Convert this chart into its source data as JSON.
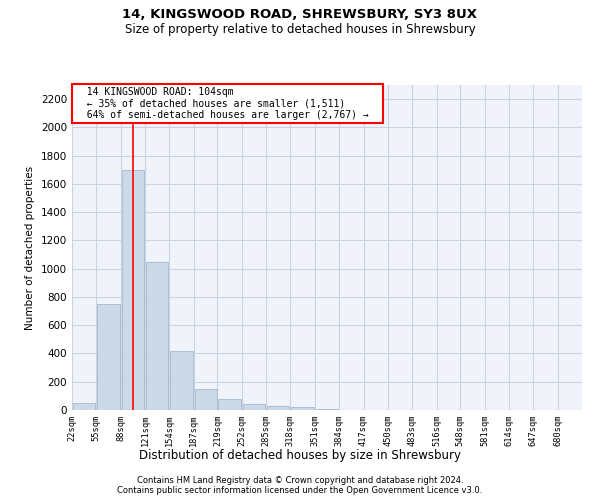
{
  "title1": "14, KINGSWOOD ROAD, SHREWSBURY, SY3 8UX",
  "title2": "Size of property relative to detached houses in Shrewsbury",
  "xlabel": "Distribution of detached houses by size in Shrewsbury",
  "ylabel": "Number of detached properties",
  "annotation_line1": "14 KINGSWOOD ROAD: 104sqm",
  "annotation_line2": "← 35% of detached houses are smaller (1,511)",
  "annotation_line3": "64% of semi-detached houses are larger (2,767) →",
  "property_size_sqm": 104,
  "bin_edges": [
    22,
    55,
    88,
    121,
    154,
    187,
    219,
    252,
    285,
    318,
    351,
    384,
    417,
    450,
    483,
    516,
    548,
    581,
    614,
    647,
    680
  ],
  "bar_values": [
    50,
    750,
    1700,
    1050,
    420,
    150,
    80,
    40,
    30,
    20,
    10,
    3,
    2,
    1,
    1,
    0,
    0,
    0,
    0,
    0
  ],
  "bar_color": "#ccd9e8",
  "bar_edge_color": "#9ab0c8",
  "red_line_x": 104,
  "ylim": [
    0,
    2300
  ],
  "yticks": [
    0,
    200,
    400,
    600,
    800,
    1000,
    1200,
    1400,
    1600,
    1800,
    2000,
    2200
  ],
  "footnote1": "Contains HM Land Registry data © Crown copyright and database right 2024.",
  "footnote2": "Contains public sector information licensed under the Open Government Licence v3.0.",
  "bg_color": "#f0f4fa",
  "grid_color": "#c8d4e4"
}
